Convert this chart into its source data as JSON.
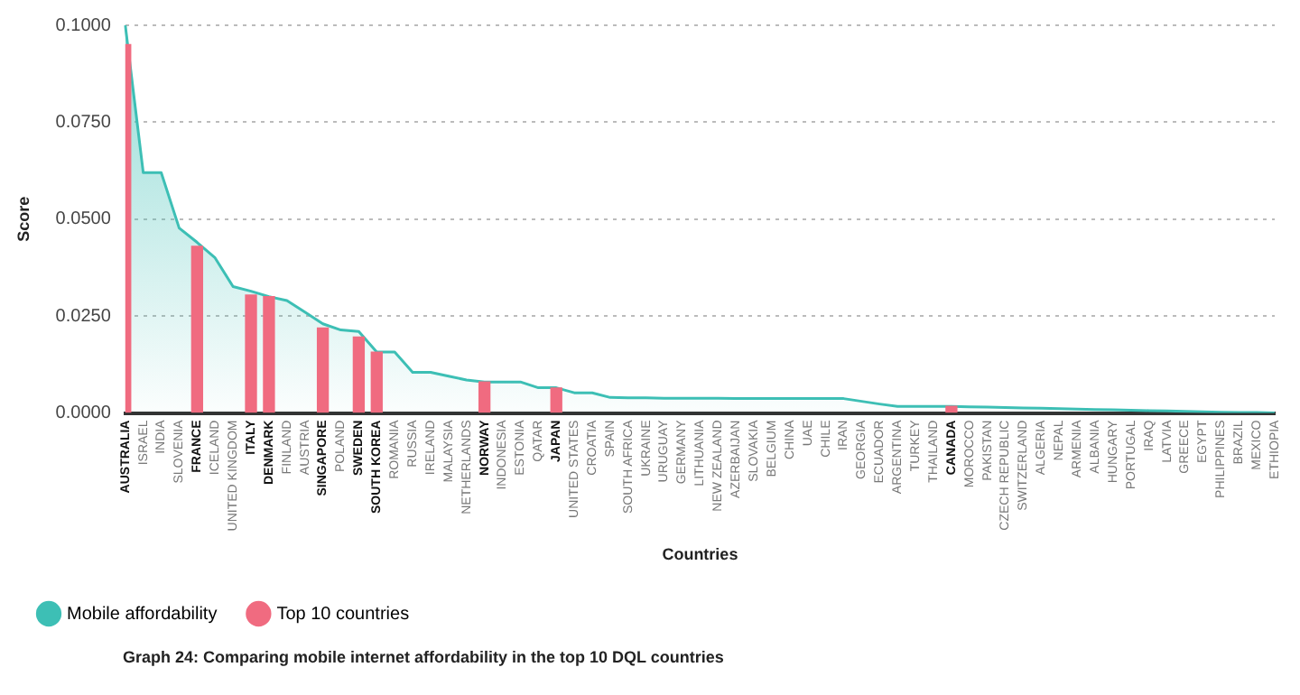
{
  "chart_data": {
    "type": "area",
    "xlabel": "Countries",
    "ylabel": "Score",
    "categories": [
      "AUSTRALIA",
      "ISRAEL",
      "INDIA",
      "SLOVENIA",
      "FRANCE",
      "ICELAND",
      "UNITED KINGDOM",
      "ITALY",
      "DENMARK",
      "FINLAND",
      "AUSTRIA",
      "SINGAPORE",
      "POLAND",
      "SWEDEN",
      "SOUTH KOREA",
      "ROMANIA",
      "RUSSIA",
      "IRELAND",
      "MALAYSIA",
      "NETHERLANDS",
      "NORWAY",
      "INDONESIA",
      "ESTONIA",
      "QATAR",
      "JAPAN",
      "UNITED STATES",
      "CROATIA",
      "SPAIN",
      "SOUTH AFRICA",
      "UKRAINE",
      "URUGUAY",
      "GERMANY",
      "LITHUANIA",
      "NEW ZEALAND",
      "AZERBAIJAN",
      "SLOVAKIA",
      "BELGIUM",
      "CHINA",
      "UAE",
      "CHILE",
      "IRAN",
      "GEORGIA",
      "ECUADOR",
      "ARGENTINA",
      "TURKEY",
      "THAILAND",
      "CANADA",
      "MOROCCO",
      "PAKISTAN",
      "CZECH REPUBLIC",
      "SWITZERLAND",
      "ALGERIA",
      "NEPAL",
      "ARMENIA",
      "ALBANIA",
      "HUNGARY",
      "PORTUGAL",
      "IRAQ",
      "LATVIA",
      "GREECE",
      "EGYPT",
      "PHILIPPINES",
      "BRAZIL",
      "MEXICO",
      "ETHIOPIA"
    ],
    "series": [
      {
        "name": "Mobile affordability",
        "color": "#3dbfb5",
        "values": [
          0.1,
          0.062,
          0.062,
          0.0477,
          0.044,
          0.04,
          0.0326,
          0.0314,
          0.03,
          0.029,
          0.026,
          0.023,
          0.0214,
          0.021,
          0.0157,
          0.0157,
          0.0105,
          0.0105,
          0.0095,
          0.0085,
          0.008,
          0.008,
          0.008,
          0.0065,
          0.0065,
          0.0052,
          0.0052,
          0.004,
          0.0039,
          0.0039,
          0.0038,
          0.0038,
          0.0038,
          0.0038,
          0.0037,
          0.0037,
          0.0037,
          0.0037,
          0.0037,
          0.0037,
          0.0037,
          0.003,
          0.0023,
          0.0017,
          0.0017,
          0.0017,
          0.0017,
          0.0016,
          0.0015,
          0.0014,
          0.0013,
          0.0012,
          0.0011,
          0.001,
          0.0009,
          0.0008,
          0.0007,
          0.0006,
          0.0005,
          0.0004,
          0.0003,
          0.0002,
          0.0001,
          0.0001,
          0
        ]
      },
      {
        "name": "Top 10 countries",
        "type": "bar",
        "color": "#f06b80",
        "values": [
          0.095,
          null,
          null,
          null,
          0.043,
          null,
          null,
          0.0304,
          0.03,
          null,
          null,
          0.0219,
          null,
          0.0196,
          0.0157,
          null,
          null,
          null,
          null,
          null,
          0.008,
          null,
          null,
          null,
          0.0064,
          null,
          null,
          null,
          null,
          null,
          null,
          null,
          null,
          null,
          null,
          null,
          null,
          null,
          null,
          null,
          null,
          null,
          null,
          null,
          null,
          null,
          0.0017,
          null,
          null,
          null,
          null,
          null,
          null,
          null,
          null,
          null,
          null,
          null,
          null,
          null,
          null,
          null,
          null,
          null,
          null
        ]
      }
    ],
    "ylim": [
      0,
      0.1
    ],
    "yticks": [
      {
        "value": 0,
        "label": "0.0000"
      },
      {
        "value": 0.025,
        "label": "0.0250"
      },
      {
        "value": 0.05,
        "label": "0.0500"
      },
      {
        "value": 0.075,
        "label": "0.0750"
      },
      {
        "value": 0.1,
        "label": "0.1000"
      }
    ],
    "grid": "y",
    "legend": "bottom left",
    "marker": "none",
    "line_style": "solid",
    "annotations": [
      "Graph 24: Comparing mobile internet affordability in the top 10 DQL countries"
    ]
  }
}
